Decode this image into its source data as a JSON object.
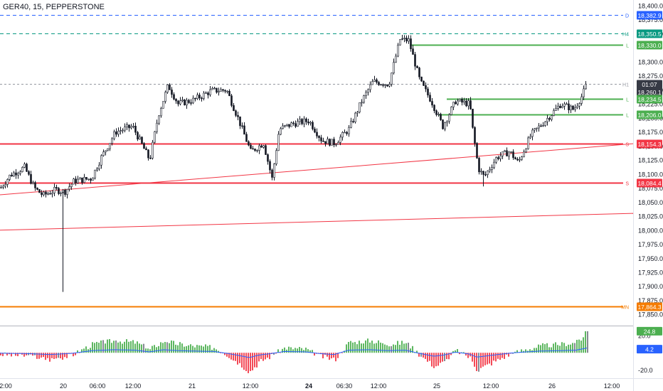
{
  "header": {
    "title": "GER40, 15, PEPPERSTONE"
  },
  "colors": {
    "up": "#26a69a",
    "candle_body_up": "#ffffff",
    "candle_outline": "#131722",
    "support": "#4caf50",
    "resistance": "#f23645",
    "trend": "#f23645",
    "daily_line": "#2962ff",
    "h4_line": "#089981",
    "monthly_line": "#f57c00",
    "osc_pos": "#4caf50",
    "osc_neg": "#f23645",
    "osc_neutral": "#787b86",
    "osc_signal": "#2962ff"
  },
  "chart_data": {
    "type": "candlestick",
    "symbol": "GER40",
    "timeframe": "15",
    "broker": "PEPPERSTONE",
    "ylim": [
      17830,
      18405
    ],
    "y_ticks": [
      "18,400.0",
      "18,375.0",
      "18,350.0",
      "18,300.0",
      "18,275.0",
      "18,250.0",
      "18,225.0",
      "18,200.0",
      "18,175.0",
      "18,150.0",
      "18,125.0",
      "18,100.0",
      "18,075.0",
      "18,050.0",
      "18,025.0",
      "18,000.0",
      "17,975.0",
      "17,950.0",
      "17,925.0",
      "17,900.0",
      "17,875.0",
      "17,850.0"
    ],
    "x_ticks": [
      "2:00",
      "20",
      "06:00",
      "12:00",
      "21",
      "12:00",
      "24",
      "06:30",
      "12:00",
      "25",
      "12:00",
      "26",
      "12:00"
    ],
    "price_path": [
      [
        0,
        18075
      ],
      [
        14,
        18098
      ],
      [
        34,
        18112
      ],
      [
        48,
        18075
      ],
      [
        60,
        18062
      ],
      [
        78,
        18072
      ],
      [
        90,
        18068
      ],
      [
        104,
        18088
      ],
      [
        128,
        18092
      ],
      [
        142,
        18130
      ],
      [
        162,
        18175
      ],
      [
        186,
        18185
      ],
      [
        210,
        18125
      ],
      [
        222,
        18205
      ],
      [
        236,
        18258
      ],
      [
        250,
        18225
      ],
      [
        272,
        18232
      ],
      [
        296,
        18248
      ],
      [
        318,
        18250
      ],
      [
        334,
        18200
      ],
      [
        352,
        18140
      ],
      [
        370,
        18155
      ],
      [
        382,
        18092
      ],
      [
        392,
        18180
      ],
      [
        412,
        18190
      ],
      [
        434,
        18195
      ],
      [
        452,
        18160
      ],
      [
        470,
        18155
      ],
      [
        490,
        18180
      ],
      [
        508,
        18230
      ],
      [
        524,
        18265
      ],
      [
        546,
        18260
      ],
      [
        562,
        18340
      ],
      [
        574,
        18338
      ],
      [
        590,
        18265
      ],
      [
        606,
        18230
      ],
      [
        622,
        18185
      ],
      [
        640,
        18230
      ],
      [
        660,
        18225
      ],
      [
        664,
        18180
      ],
      [
        672,
        18110
      ],
      [
        680,
        18095
      ],
      [
        698,
        18130
      ],
      [
        716,
        18140
      ],
      [
        728,
        18120
      ],
      [
        746,
        18170
      ],
      [
        766,
        18195
      ],
      [
        788,
        18225
      ],
      [
        806,
        18215
      ],
      [
        818,
        18240
      ],
      [
        824,
        18260
      ]
    ],
    "extremes": [
      {
        "x": 88,
        "low": 17890
      },
      {
        "x": 565,
        "high": 18348
      },
      {
        "x": 679,
        "low": 18078
      }
    ],
    "levels": [
      {
        "label": "D",
        "price": 18382.9,
        "value_label": "18,382.9",
        "style": "dashed",
        "color": "#2962ff"
      },
      {
        "label": "H4",
        "price": 18350.5,
        "value_label": "18,350.5",
        "style": "dashed",
        "color": "#089981"
      },
      {
        "label": "L",
        "price": 18330.0,
        "value_label": "18,330.0",
        "style": "solid",
        "color": "#4caf50",
        "from_x": 576
      },
      {
        "label": "H1",
        "price": 18260.1,
        "value_label": "18,260.1",
        "style": "dashed",
        "color": "#131722",
        "countdown": "01:07"
      },
      {
        "label": "L",
        "price": 18234.5,
        "value_label": "18,234.5",
        "style": "solid",
        "color": "#4caf50",
        "from_x": 628
      },
      {
        "label": "L",
        "price": 18206.0,
        "value_label": "18,206.0",
        "style": "solid",
        "color": "#4caf50",
        "from_x": 616
      },
      {
        "label": "S",
        "price": 18154.3,
        "value_label": "18,154.3",
        "style": "solid",
        "color": "#f23645",
        "from_x": 0
      },
      {
        "label": "S",
        "price": 18084.4,
        "value_label": "18,084.4",
        "style": "solid",
        "color": "#f23645",
        "from_x": 0
      },
      {
        "label": "MN",
        "price": 17864.3,
        "value_label": "17,864.3",
        "style": "solid",
        "color": "#f57c00",
        "from_x": 0
      }
    ],
    "trendlines": [
      {
        "x1": 0,
        "y1": 18063,
        "x2": 890,
        "y2": 18154
      },
      {
        "x1": 0,
        "y1": 18000,
        "x2": 890,
        "y2": 18030
      }
    ],
    "oscillator": {
      "ylim": [
        -26,
        28
      ],
      "ticks": [
        "20.0",
        "-20.0"
      ],
      "current": "24.8",
      "signal_current": "4.2",
      "profile": [
        [
          0,
          -2
        ],
        [
          40,
          -4
        ],
        [
          70,
          -8
        ],
        [
          100,
          -3
        ],
        [
          130,
          10
        ],
        [
          160,
          14
        ],
        [
          190,
          12
        ],
        [
          210,
          4
        ],
        [
          230,
          14
        ],
        [
          250,
          10
        ],
        [
          270,
          8
        ],
        [
          300,
          6
        ],
        [
          320,
          -3
        ],
        [
          335,
          -12
        ],
        [
          350,
          -22
        ],
        [
          365,
          -10
        ],
        [
          380,
          -4
        ],
        [
          400,
          6
        ],
        [
          430,
          4
        ],
        [
          450,
          -4
        ],
        [
          470,
          -8
        ],
        [
          490,
          12
        ],
        [
          520,
          14
        ],
        [
          545,
          10
        ],
        [
          570,
          12
        ],
        [
          590,
          -3
        ],
        [
          610,
          -16
        ],
        [
          625,
          -10
        ],
        [
          640,
          3
        ],
        [
          660,
          -6
        ],
        [
          670,
          -20
        ],
        [
          690,
          -12
        ],
        [
          710,
          -4
        ],
        [
          730,
          2
        ],
        [
          760,
          8
        ],
        [
          790,
          10
        ],
        [
          810,
          12
        ],
        [
          825,
          22
        ]
      ]
    }
  }
}
